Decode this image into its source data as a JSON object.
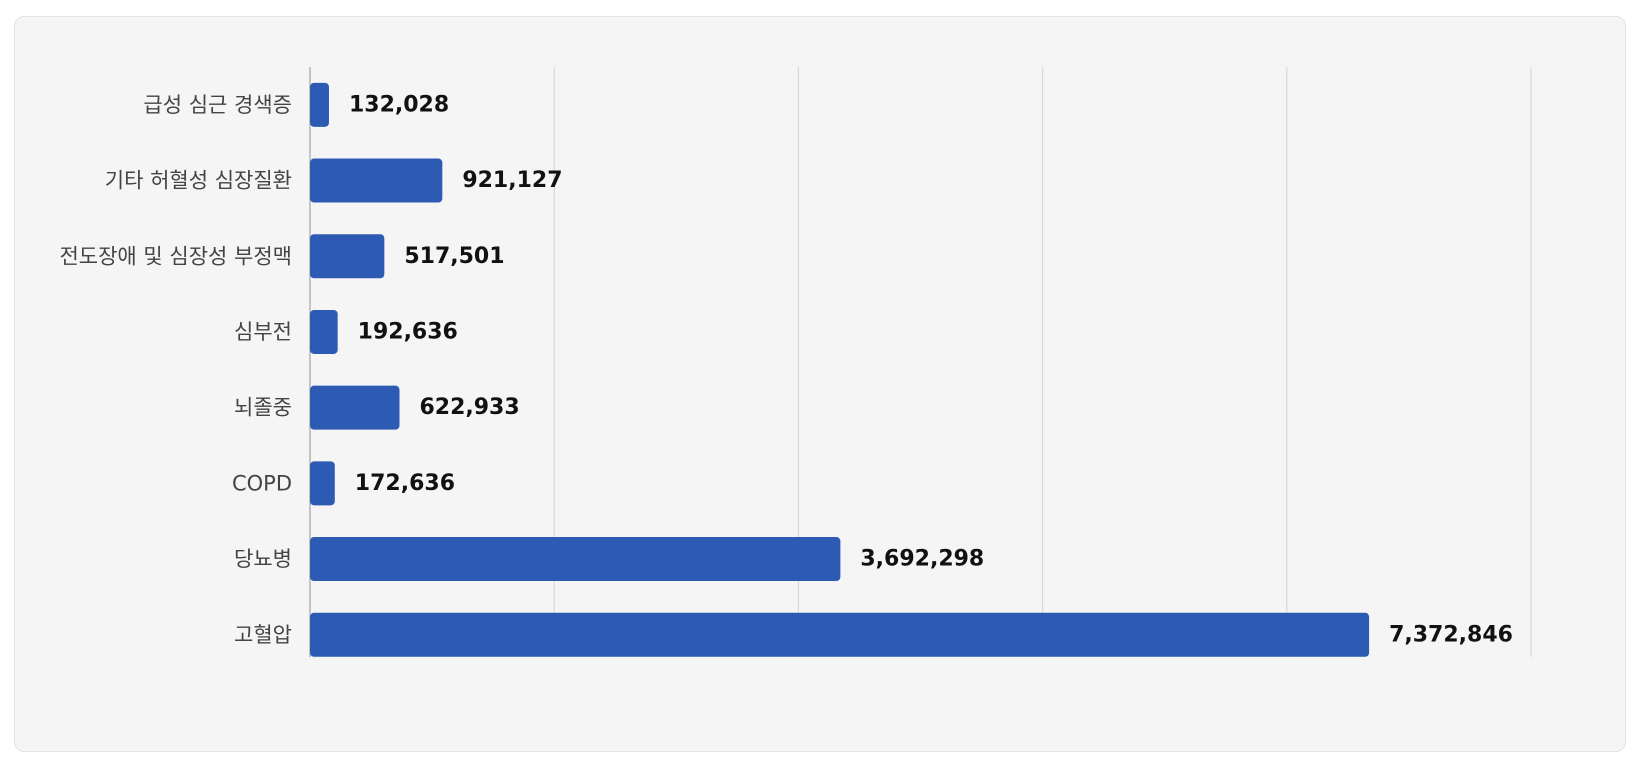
{
  "chart_data": {
    "type": "bar",
    "orientation": "horizontal",
    "categories": [
      "급성 심근 경색증",
      "기타 허혈성 심장질환",
      "전도장애 및 심장성 부정맥",
      "심부전",
      "뇌졸중",
      "COPD",
      "당뇨병",
      "고혈압"
    ],
    "values": [
      132028,
      921127,
      517501,
      192636,
      622933,
      172636,
      3692298,
      7372846
    ],
    "value_labels": [
      "132,028",
      "921,127",
      "517,501",
      "192,636",
      "622,933",
      "172,636",
      "3,692,298",
      "7,372,846"
    ],
    "xlim": [
      0,
      8500000
    ],
    "grid": true,
    "bar_color": "#2d5bb3",
    "grid_color": "#d9d9d9",
    "title": "",
    "xlabel": "",
    "ylabel": ""
  }
}
